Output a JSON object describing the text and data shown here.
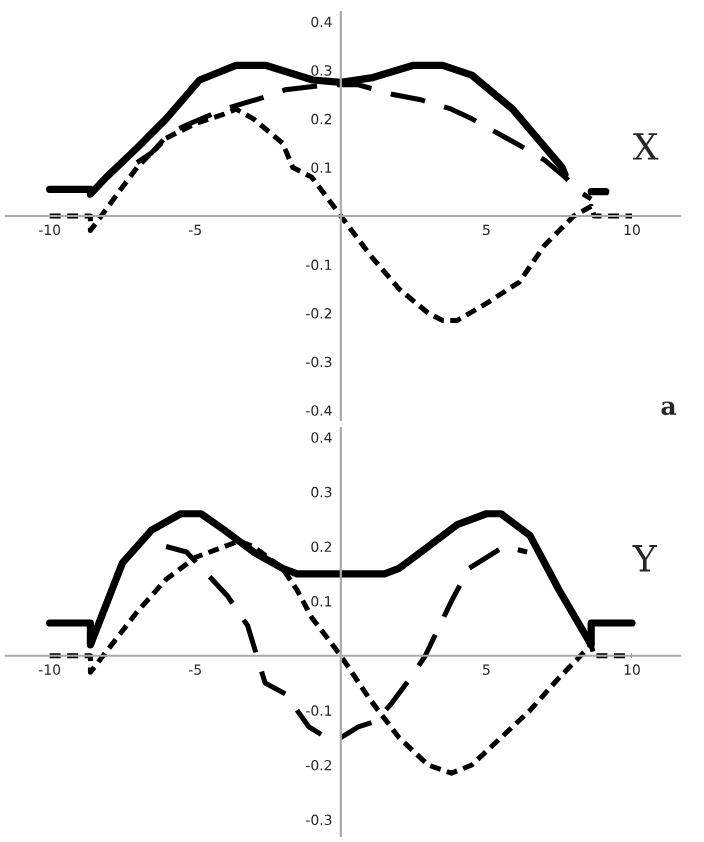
{
  "chart_data": [
    {
      "type": "line",
      "annotations": [
        "X",
        "a"
      ],
      "xlim": [
        -11.5,
        11.65
      ],
      "ylim": [
        -0.42,
        0.42
      ],
      "xticks": [
        -10,
        -5,
        5,
        10
      ],
      "yticks": [
        -0.4,
        -0.3,
        -0.2,
        -0.1,
        0.1,
        0.2,
        0.3,
        0.4
      ],
      "grid": false,
      "legend": false,
      "series": [
        {
          "color": "#000000",
          "line_style": "solid",
          "x": [
            -10,
            -8.6,
            -8.6,
            -8.05,
            -7,
            -6,
            -4.85,
            -3.6,
            -2.56,
            -0.96,
            0,
            1.1,
            2.47,
            3.5,
            4.5,
            5.9,
            7.6,
            7.7,
            8.2,
            8.6,
            9.1
          ],
          "values": [
            0.055,
            0.055,
            0.045,
            0.08,
            0.14,
            0.2,
            0.28,
            0.31,
            0.31,
            0.28,
            0.275,
            0.285,
            0.31,
            0.31,
            0.29,
            0.22,
            0.1,
            0.085,
            null,
            0.05,
            0.05
          ]
        },
        {
          "color": "#000000",
          "line_style": "dashed",
          "x": [
            -7,
            -6.5,
            -5.9,
            -5.2,
            -4,
            -2.6,
            -1.9,
            -0.5,
            0.6,
            1.8,
            2.7,
            3.8,
            4.5,
            5.7,
            6.6,
            7,
            7.7,
            8.2,
            8.6
          ],
          "values": [
            0.11,
            0.13,
            0.17,
            0.19,
            0.22,
            0.245,
            0.26,
            0.27,
            0.27,
            0.25,
            0.24,
            0.22,
            0.2,
            0.16,
            0.13,
            0.115,
            0.08,
            0.05,
            0.035
          ]
        },
        {
          "color": "#000000",
          "line_style": "dotted",
          "x": [
            -10,
            -8.6,
            -8.6,
            -7,
            -6,
            -5,
            -4,
            -3.6,
            -3,
            -2,
            -1.65,
            -1,
            0,
            1,
            2,
            3,
            3.5,
            4,
            5,
            6.13,
            7,
            8,
            8.6,
            8.7,
            10
          ],
          "values": [
            0,
            0,
            -0.03,
            0.1,
            0.16,
            0.19,
            0.21,
            0.22,
            0.2,
            0.15,
            0.1,
            0.08,
            0,
            -0.08,
            -0.15,
            -0.2,
            -0.215,
            -0.215,
            -0.18,
            -0.136,
            -0.06,
            0,
            0.02,
            0,
            0
          ]
        }
      ]
    },
    {
      "type": "line",
      "annotations": [
        "Y"
      ],
      "xlim": [
        -11.5,
        11.65
      ],
      "ylim": [
        -0.33,
        0.417
      ],
      "xticks": [
        -10,
        -5,
        5,
        10
      ],
      "yticks": [
        -0.3,
        -0.2,
        -0.1,
        0.1,
        0.2,
        0.3,
        0.4
      ],
      "grid": false,
      "legend": false,
      "series": [
        {
          "color": "#000000",
          "line_style": "solid",
          "x": [
            -10,
            -8.6,
            -8.6,
            -7.5,
            -6.5,
            -5.5,
            -4.8,
            -4,
            -3,
            -2,
            -1.5,
            0,
            1.5,
            2,
            3,
            4,
            5,
            5.5,
            6.5,
            7.5,
            8.6,
            8.6,
            10
          ],
          "values": [
            0.06,
            0.06,
            0.02,
            0.17,
            0.23,
            0.26,
            0.26,
            0.23,
            0.19,
            0.16,
            0.15,
            0.15,
            0.15,
            0.16,
            0.2,
            0.24,
            0.26,
            0.26,
            0.22,
            0.12,
            0.02,
            0.06,
            0.06
          ]
        },
        {
          "color": "#000000",
          "line_style": "dashed",
          "x": [
            -6,
            -5.3,
            -3.9,
            -3.2,
            -2.6,
            -1.9,
            -1.1,
            -0.5,
            0,
            0.6,
            1.2,
            1.7,
            2.4,
            2.9,
            3.8,
            4.4,
            5.6,
            6.4
          ],
          "values": [
            0.2,
            0.19,
            0.11,
            0.055,
            -0.05,
            -0.07,
            -0.13,
            -0.15,
            -0.15,
            -0.13,
            -0.12,
            -0.09,
            -0.04,
            0,
            0.1,
            0.16,
            0.2,
            0.19
          ]
        },
        {
          "color": "#000000",
          "line_style": "dotted",
          "x": [
            -10,
            -8.6,
            -8.6,
            -7,
            -6,
            -5,
            -4,
            -3.5,
            -3,
            -2,
            -1.5,
            -1,
            0,
            1,
            2,
            3,
            3.8,
            4.5,
            5.5,
            6.5,
            7.5,
            8.6,
            8.7,
            10
          ],
          "values": [
            0,
            0,
            -0.03,
            0.08,
            0.14,
            0.18,
            0.2,
            0.21,
            0.2,
            0.16,
            0.12,
            0.07,
            0,
            -0.08,
            -0.15,
            -0.2,
            -0.215,
            -0.2,
            -0.15,
            -0.1,
            -0.04,
            0.02,
            0,
            0
          ]
        }
      ]
    }
  ]
}
